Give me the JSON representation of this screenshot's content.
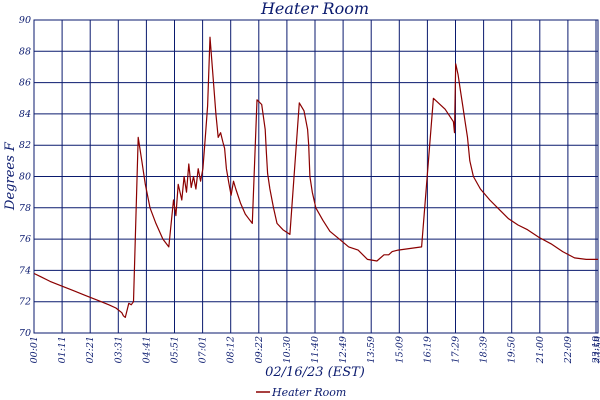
{
  "colors": {
    "line": "#8b0000",
    "grid": "#0a1a6e",
    "text": "#0a1a6e",
    "background": "#ffffff"
  },
  "chart_data": {
    "type": "line",
    "title": "Heater Room",
    "xlabel": "02/16/23 (EST)",
    "ylabel": "Degrees F",
    "ylim": [
      70,
      90
    ],
    "yticks": [
      70,
      72,
      74,
      76,
      78,
      80,
      82,
      84,
      86,
      88,
      90
    ],
    "xlim_hours": [
      0.017,
      24.0
    ],
    "xticks": [
      "00:01",
      "01:11",
      "02:21",
      "03:31",
      "04:41",
      "05:51",
      "07:01",
      "08:12",
      "09:22",
      "10:30",
      "11:40",
      "12:49",
      "13:59",
      "15:09",
      "16:19",
      "17:29",
      "18:39",
      "19:50",
      "21:00",
      "22:09",
      "23:19",
      "23:59"
    ],
    "grid": true,
    "legend_position": "bottom-center",
    "series": [
      {
        "name": "Heater Room",
        "x": [
          0.02,
          0.3,
          0.7,
          1.2,
          1.7,
          2.2,
          2.7,
          3.2,
          3.5,
          3.75,
          3.82,
          3.9,
          4.05,
          4.15,
          4.25,
          4.45,
          4.6,
          4.75,
          4.95,
          5.2,
          5.5,
          5.75,
          5.95,
          6.05,
          6.15,
          6.3,
          6.4,
          6.5,
          6.6,
          6.7,
          6.8,
          6.9,
          7.0,
          7.1,
          7.2,
          7.3,
          7.4,
          7.5,
          7.6,
          7.65,
          7.75,
          7.85,
          7.95,
          8.05,
          8.12,
          8.2,
          8.3,
          8.4,
          8.5,
          8.6,
          8.8,
          9.0,
          9.15,
          9.3,
          9.5,
          9.7,
          9.85,
          9.9,
          9.95,
          10.05,
          10.2,
          10.35,
          10.6,
          10.9,
          11.3,
          11.5,
          11.65,
          11.7,
          11.75,
          11.85,
          12.0,
          12.3,
          12.6,
          13.0,
          13.4,
          13.8,
          14.2,
          14.6,
          14.9,
          15.1,
          15.25,
          15.5,
          16.0,
          16.5,
          17.0,
          17.5,
          17.85,
          17.9,
          17.95,
          18.05,
          18.15,
          18.25,
          18.35,
          18.45,
          18.55,
          18.7,
          19.0,
          19.4,
          19.8,
          20.2,
          20.6,
          21.0,
          21.5,
          22.0,
          22.5,
          23.0,
          23.5,
          24.0
        ],
        "values": [
          73.8,
          73.6,
          73.3,
          73.0,
          72.7,
          72.4,
          72.1,
          71.8,
          71.6,
          71.3,
          71.1,
          71.0,
          71.9,
          71.8,
          72.0,
          82.5,
          81.0,
          79.5,
          78.0,
          77.0,
          76.0,
          75.5,
          78.5,
          77.5,
          79.5,
          78.5,
          80.0,
          79.0,
          80.8,
          79.3,
          80.0,
          79.2,
          80.5,
          79.7,
          80.5,
          82.5,
          84.5,
          88.9,
          87.0,
          86.0,
          84.0,
          82.5,
          82.8,
          82.2,
          81.8,
          80.5,
          79.6,
          78.8,
          79.7,
          79.2,
          78.3,
          77.6,
          77.3,
          77.0,
          84.9,
          84.6,
          83.0,
          81.5,
          80.2,
          79.2,
          78.0,
          77.0,
          76.6,
          76.3,
          84.7,
          84.2,
          83.0,
          82.0,
          80.0,
          79.0,
          78.0,
          77.2,
          76.5,
          76.0,
          75.5,
          75.3,
          74.7,
          74.6,
          75.0,
          75.0,
          75.2,
          75.3,
          75.4,
          75.5,
          85.0,
          84.3,
          83.5,
          82.8,
          87.2,
          86.5,
          85.5,
          84.5,
          83.5,
          82.5,
          81.0,
          80.0,
          79.2,
          78.5,
          77.9,
          77.3,
          76.9,
          76.6,
          76.1,
          75.7,
          75.2,
          74.8,
          74.7,
          74.7
        ]
      }
    ]
  }
}
